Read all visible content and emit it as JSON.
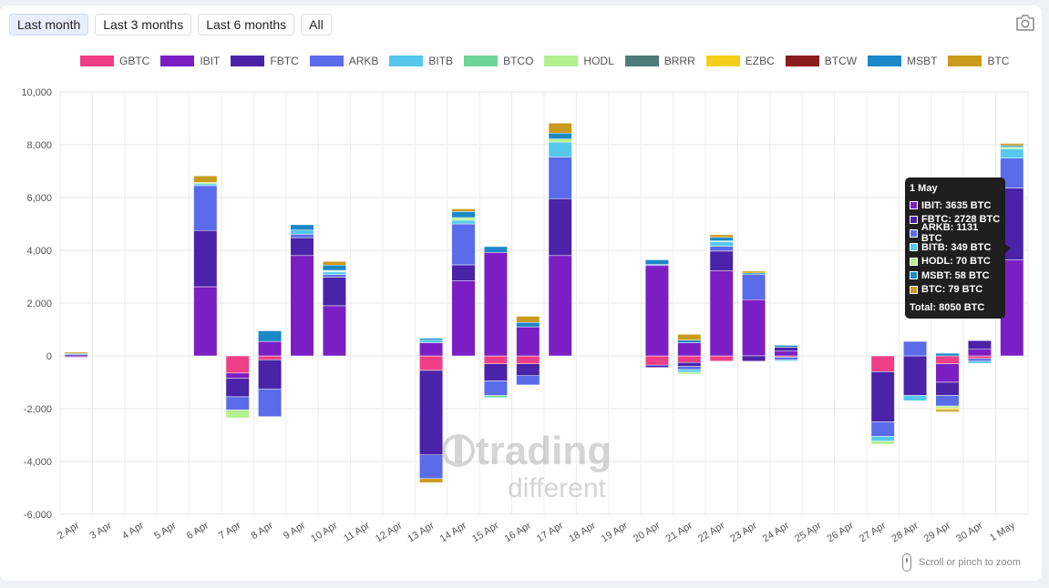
{
  "range_buttons": [
    {
      "label": "Last month",
      "active": true
    },
    {
      "label": "Last 3 months",
      "active": false
    },
    {
      "label": "Last 6 months",
      "active": false
    },
    {
      "label": "All",
      "active": false
    }
  ],
  "icons": {
    "screenshot": "camera-icon",
    "zoom_hint": "mouse-icon"
  },
  "zoom_hint_text": "Scroll or pinch to zoom",
  "watermark": {
    "line1": "trading",
    "line2": "different"
  },
  "tooltip": {
    "title": "1 May",
    "rows": [
      {
        "text": "IBIT: 3635 BTC",
        "color": "#7b1fc4"
      },
      {
        "text": "FBTC: 2728 BTC",
        "color": "#4a23a8"
      },
      {
        "text": "ARKB: 1131 BTC",
        "color": "#5a6cea"
      },
      {
        "text": "BITB: 349 BTC",
        "color": "#56c8ec"
      },
      {
        "text": "HODL: 70 BTC",
        "color": "#b3f08e"
      },
      {
        "text": "MSBT: 58 BTC",
        "color": "#1b88c7"
      },
      {
        "text": "BTC: 79 BTC",
        "color": "#c99a1c"
      }
    ],
    "total": "Total: 8050 BTC"
  },
  "chart_data": {
    "type": "bar",
    "stacked": true,
    "ylim": [
      -6000,
      10000
    ],
    "yticks": [
      "10,000",
      "8,000",
      "6,000",
      "4,000",
      "2,000",
      "0",
      "-2,000",
      "-4,000",
      "-6,000"
    ],
    "grid": true,
    "legend_position": "top",
    "categories": [
      "2 Apr",
      "3 Apr",
      "4 Apr",
      "5 Apr",
      "6 Apr",
      "7 Apr",
      "8 Apr",
      "9 Apr",
      "10 Apr",
      "11 Apr",
      "12 Apr",
      "13 Apr",
      "14 Apr",
      "15 Apr",
      "16 Apr",
      "17 Apr",
      "18 Apr",
      "19 Apr",
      "20 Apr",
      "21 Apr",
      "22 Apr",
      "23 Apr",
      "24 Apr",
      "25 Apr",
      "26 Apr",
      "27 Apr",
      "28 Apr",
      "29 Apr",
      "30 Apr",
      "1 May"
    ],
    "series": [
      {
        "name": "GBTC",
        "color": "#f03f86",
        "values": [
          0,
          0,
          0,
          0,
          0,
          -650,
          -150,
          0,
          0,
          0,
          0,
          -550,
          0,
          -300,
          -300,
          0,
          0,
          0,
          -350,
          -250,
          -200,
          0,
          -50,
          0,
          0,
          -600,
          0,
          -300,
          -100,
          0
        ]
      },
      {
        "name": "IBIT",
        "color": "#7b1fc4",
        "values": [
          -50,
          0,
          0,
          0,
          2620,
          -200,
          550,
          3800,
          1900,
          0,
          0,
          500,
          2850,
          3920,
          1100,
          3800,
          0,
          0,
          3420,
          500,
          3220,
          2130,
          180,
          0,
          0,
          0,
          0,
          -700,
          250,
          3635
        ]
      },
      {
        "name": "FBTC",
        "color": "#4a23a8",
        "values": [
          50,
          0,
          0,
          0,
          2130,
          -700,
          -1100,
          680,
          1080,
          0,
          0,
          -3200,
          600,
          -650,
          -450,
          2160,
          0,
          0,
          -90,
          -150,
          750,
          -200,
          150,
          0,
          0,
          -1900,
          -1500,
          -500,
          330,
          2728
        ]
      },
      {
        "name": "ARKB",
        "color": "#5a6cea",
        "values": [
          0,
          0,
          0,
          0,
          1700,
          -500,
          -1050,
          130,
          100,
          0,
          0,
          -900,
          1550,
          -550,
          -350,
          1580,
          0,
          0,
          50,
          -120,
          180,
          950,
          -100,
          0,
          0,
          -550,
          550,
          -400,
          -100,
          1131
        ]
      },
      {
        "name": "BITB",
        "color": "#56c8ec",
        "values": [
          0,
          0,
          0,
          0,
          70,
          0,
          0,
          160,
          100,
          0,
          0,
          100,
          140,
          0,
          0,
          560,
          0,
          0,
          0,
          -100,
          180,
          0,
          -50,
          0,
          0,
          -180,
          -200,
          0,
          -80,
          349
        ]
      },
      {
        "name": "BTCO",
        "color": "#6fd69a",
        "values": [
          0,
          0,
          0,
          0,
          0,
          0,
          0,
          0,
          30,
          0,
          0,
          0,
          0,
          -80,
          0,
          0,
          0,
          0,
          0,
          0,
          0,
          0,
          0,
          0,
          0,
          0,
          0,
          0,
          0,
          0
        ]
      },
      {
        "name": "HODL",
        "color": "#b3f08e",
        "values": [
          0,
          0,
          0,
          0,
          50,
          -300,
          0,
          0,
          30,
          0,
          0,
          0,
          100,
          0,
          0,
          120,
          0,
          0,
          0,
          -70,
          30,
          0,
          0,
          0,
          0,
          -120,
          0,
          -80,
          0,
          70
        ]
      },
      {
        "name": "BRRR",
        "color": "#4d7b7a",
        "values": [
          0,
          0,
          0,
          0,
          0,
          0,
          0,
          0,
          0,
          0,
          0,
          0,
          0,
          0,
          0,
          0,
          0,
          0,
          0,
          0,
          0,
          0,
          0,
          0,
          0,
          0,
          0,
          0,
          0,
          0
        ]
      },
      {
        "name": "EZBC",
        "color": "#f3cf1b",
        "values": [
          0,
          0,
          0,
          0,
          0,
          0,
          0,
          0,
          0,
          0,
          0,
          0,
          0,
          0,
          0,
          0,
          0,
          0,
          0,
          0,
          0,
          0,
          0,
          0,
          0,
          0,
          0,
          -60,
          0,
          0
        ]
      },
      {
        "name": "BTCW",
        "color": "#8a1c1c",
        "values": [
          0,
          0,
          0,
          0,
          0,
          0,
          0,
          0,
          0,
          0,
          0,
          0,
          0,
          0,
          0,
          0,
          0,
          0,
          0,
          0,
          0,
          0,
          0,
          0,
          0,
          0,
          0,
          0,
          0,
          0
        ]
      },
      {
        "name": "MSBT",
        "color": "#1b88c7",
        "values": [
          40,
          0,
          0,
          0,
          0,
          0,
          400,
          200,
          200,
          0,
          0,
          70,
          230,
          220,
          170,
          220,
          0,
          0,
          170,
          100,
          130,
          60,
          70,
          0,
          0,
          0,
          0,
          100,
          0,
          58
        ]
      },
      {
        "name": "BTC",
        "color": "#c99a1c",
        "values": [
          50,
          0,
          0,
          0,
          250,
          0,
          0,
          0,
          140,
          0,
          0,
          -150,
          100,
          0,
          230,
          380,
          0,
          0,
          0,
          220,
          100,
          70,
          0,
          0,
          0,
          0,
          0,
          -80,
          0,
          79
        ]
      }
    ]
  }
}
